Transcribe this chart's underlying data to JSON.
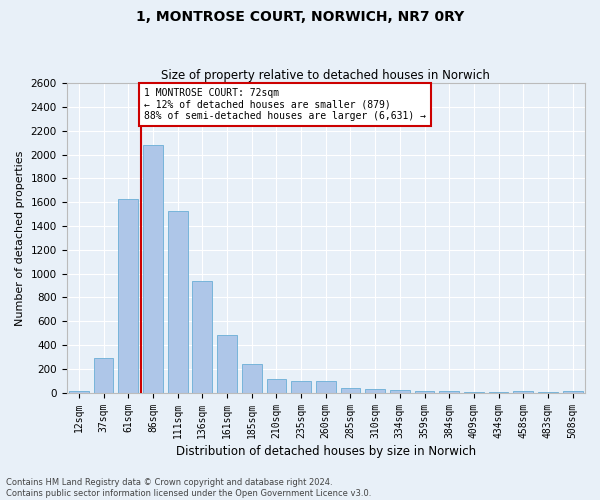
{
  "title": "1, MONTROSE COURT, NORWICH, NR7 0RY",
  "subtitle": "Size of property relative to detached houses in Norwich",
  "xlabel": "Distribution of detached houses by size in Norwich",
  "ylabel": "Number of detached properties",
  "bar_color": "#aec6e8",
  "bar_edge_color": "#6aaed6",
  "background_color": "#e8f0f8",
  "grid_color": "#ffffff",
  "categories": [
    "12sqm",
    "37sqm",
    "61sqm",
    "86sqm",
    "111sqm",
    "136sqm",
    "161sqm",
    "185sqm",
    "210sqm",
    "235sqm",
    "260sqm",
    "285sqm",
    "310sqm",
    "334sqm",
    "359sqm",
    "384sqm",
    "409sqm",
    "434sqm",
    "458sqm",
    "483sqm",
    "508sqm"
  ],
  "values": [
    15,
    290,
    1630,
    2080,
    1530,
    940,
    480,
    240,
    115,
    95,
    95,
    38,
    28,
    20,
    10,
    15,
    8,
    5,
    15,
    5,
    15
  ],
  "ylim": [
    0,
    2600
  ],
  "yticks": [
    0,
    200,
    400,
    600,
    800,
    1000,
    1200,
    1400,
    1600,
    1800,
    2000,
    2200,
    2400,
    2600
  ],
  "annotation_line1": "1 MONTROSE COURT: 72sqm",
  "annotation_line2": "← 12% of detached houses are smaller (879)",
  "annotation_line3": "88% of semi-detached houses are larger (6,631) →",
  "vline_color": "#cc0000",
  "annotation_box_color": "#ffffff",
  "annotation_box_edge": "#cc0000",
  "footer_line1": "Contains HM Land Registry data © Crown copyright and database right 2024.",
  "footer_line2": "Contains public sector information licensed under the Open Government Licence v3.0.",
  "vline_index": 2.5
}
